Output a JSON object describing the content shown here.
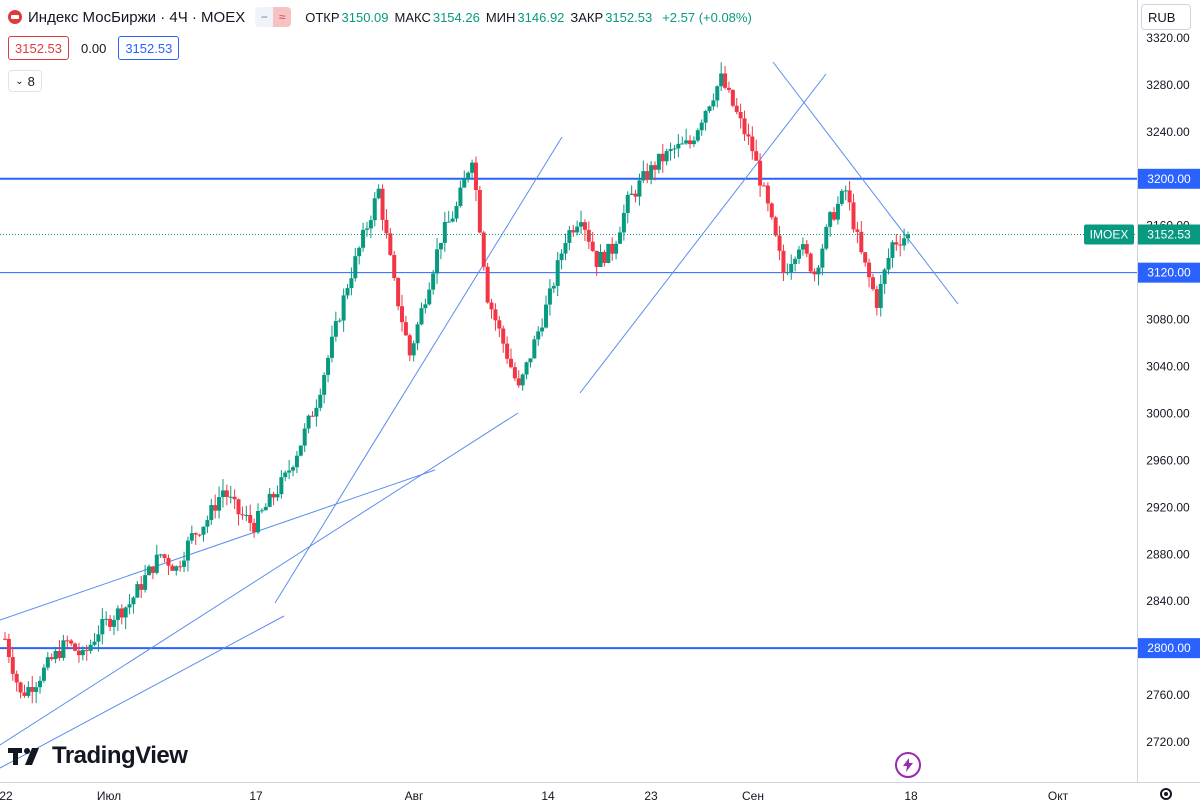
{
  "legend": {
    "title": "Индекс МосБиржи · 4Ч · MOEX",
    "open_label": "ОТКР",
    "open": "3150.09",
    "high_label": "МАКС",
    "high": "3154.26",
    "low_label": "МИН",
    "low": "3146.92",
    "close_label": "ЗАКР",
    "close": "3152.53",
    "change": "+2.57 (+0.08%)"
  },
  "pricebox": {
    "sell": "3152.53",
    "spread": "0.00",
    "buy": "3152.53"
  },
  "indicators_count": "8",
  "currency": "RUB",
  "brand": "TradingView",
  "colors": {
    "up": "#089981",
    "down": "#f23645",
    "level": "#2962ff",
    "trend": "#5b8def",
    "badge": "#089981"
  },
  "chart_data": {
    "type": "candlestick",
    "symbol": "IMOEX",
    "last_price": "3152.53",
    "y_ticks": [
      "3320.00",
      "3280.00",
      "3240.00",
      "3200.00",
      "3160.00",
      "3120.00",
      "3080.00",
      "3040.00",
      "3000.00",
      "2960.00",
      "2920.00",
      "2880.00",
      "2840.00",
      "2800.00",
      "2760.00",
      "2720.00"
    ],
    "ylim": [
      2690,
      3322
    ],
    "x_labels": [
      "22",
      "Июл",
      "17",
      "Авг",
      "14",
      "23",
      "Сен",
      "18",
      "Окт"
    ],
    "levels": [
      {
        "price": 3200,
        "label": "3200.00",
        "weight": "thick"
      },
      {
        "price": 3120,
        "label": "3120.00",
        "weight": "thin"
      },
      {
        "price": 2800,
        "label": "2800.00",
        "weight": "thick"
      }
    ],
    "path": [
      2808,
      2760,
      2772,
      2790,
      2805,
      2792,
      2815,
      2828,
      2838,
      2860,
      2880,
      2868,
      2895,
      2910,
      2935,
      2915,
      2905,
      2925,
      2945,
      2975,
      3010,
      3060,
      3110,
      3150,
      3190,
      3110,
      3050,
      3100,
      3150,
      3175,
      3220,
      3100,
      3060,
      3020,
      3060,
      3100,
      3150,
      3170,
      3130,
      3140,
      3180,
      3200,
      3215,
      3225,
      3230,
      3260,
      3285,
      3255,
      3225,
      3175,
      3120,
      3145,
      3120,
      3165,
      3190,
      3135,
      3095,
      3145,
      3152.53
    ]
  }
}
